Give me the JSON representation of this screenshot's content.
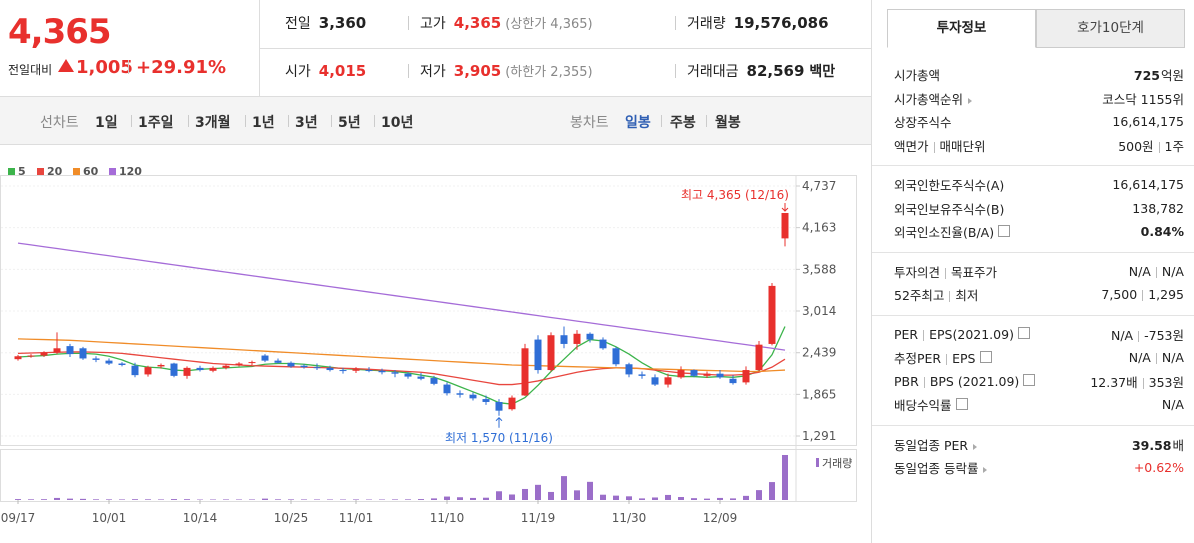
{
  "quote": {
    "price": "4,365",
    "change_label": "전일대비",
    "change": "1,005",
    "change_pct": "+29.91%",
    "color": "#e8302d"
  },
  "summary": [
    [
      {
        "label": "전일",
        "value": "3,360"
      },
      {
        "label": "고가",
        "value": "4,365",
        "note": "(상한가 4,365)",
        "color": "#e8302d"
      },
      {
        "label": "거래량",
        "value": "19,576,086"
      }
    ],
    [
      {
        "label": "시가",
        "value": "4,015",
        "color": "#e8302d"
      },
      {
        "label": "저가",
        "value": "3,905",
        "note": "(하한가 2,355)",
        "color": "#e8302d"
      },
      {
        "label": "거래대금",
        "value": "82,569",
        "unit": "백만"
      }
    ]
  ],
  "line_chart_tabs": {
    "label": "선차트",
    "options": [
      "1일",
      "1주일",
      "3개월",
      "1년",
      "3년",
      "5년",
      "10년"
    ]
  },
  "candle_tabs": {
    "label": "봉차트",
    "options": [
      "일봉",
      "주봉",
      "월봉"
    ],
    "selected": 0
  },
  "chart": {
    "type": "candlestick",
    "grid": true,
    "up_color": "#e8302d",
    "down_color": "#2f6ed6",
    "categories": [
      "09/17",
      null,
      null,
      null,
      null,
      null,
      null,
      "10/01",
      null,
      null,
      null,
      null,
      null,
      null,
      "10/14",
      null,
      null,
      null,
      null,
      null,
      null,
      "10/25",
      null,
      null,
      null,
      null,
      "11/01",
      null,
      null,
      null,
      null,
      null,
      null,
      "11/10",
      null,
      null,
      null,
      null,
      null,
      null,
      "11/19",
      null,
      null,
      null,
      null,
      null,
      null,
      "11/30",
      null,
      null,
      null,
      null,
      null,
      null,
      "12/09",
      null,
      null,
      null,
      null,
      null
    ],
    "candles": {
      "open": [
        2350,
        2390,
        2400,
        2440,
        2530,
        2500,
        2360,
        2330,
        2290,
        2260,
        2140,
        2250,
        2290,
        2120,
        2230,
        2190,
        2230,
        2270,
        2300,
        2400,
        2330,
        2300,
        2260,
        2240,
        2230,
        2200,
        2190,
        2200,
        2190,
        2170,
        2150,
        2110,
        2090,
        2000,
        1880,
        1860,
        1800,
        1760,
        1660,
        1850,
        2620,
        2200,
        2680,
        2560,
        2700,
        2620,
        2500,
        2280,
        2140,
        2100,
        2000,
        2100,
        2200,
        2120,
        2150,
        2080,
        2030,
        2200,
        2560,
        4015
      ],
      "high": [
        2410,
        2420,
        2460,
        2720,
        2560,
        2520,
        2390,
        2360,
        2310,
        2300,
        2260,
        2290,
        2300,
        2250,
        2260,
        2250,
        2280,
        2310,
        2330,
        2420,
        2360,
        2320,
        2280,
        2290,
        2260,
        2230,
        2240,
        2240,
        2220,
        2200,
        2170,
        2160,
        2120,
        2030,
        1920,
        1890,
        1850,
        1800,
        1850,
        2560,
        2680,
        2720,
        2800,
        2750,
        2720,
        2650,
        2520,
        2300,
        2180,
        2140,
        2150,
        2250,
        2210,
        2180,
        2200,
        2130,
        2250,
        2600,
        3400,
        4365
      ],
      "low": [
        2330,
        2370,
        2380,
        2420,
        2380,
        2340,
        2310,
        2270,
        2250,
        2100,
        2110,
        2220,
        2100,
        2080,
        2180,
        2170,
        2210,
        2250,
        2270,
        2310,
        2290,
        2230,
        2220,
        2200,
        2180,
        2150,
        2160,
        2170,
        2140,
        2100,
        2080,
        2060,
        1990,
        1850,
        1820,
        1780,
        1720,
        1570,
        1640,
        1840,
        2150,
        2180,
        2500,
        2480,
        2580,
        2480,
        2250,
        2100,
        2080,
        1980,
        1960,
        2080,
        2100,
        2090,
        2080,
        2000,
        2000,
        2180,
        2540,
        3905
      ],
      "close": [
        2390,
        2400,
        2440,
        2500,
        2420,
        2360,
        2340,
        2290,
        2270,
        2130,
        2240,
        2270,
        2120,
        2230,
        2200,
        2230,
        2260,
        2290,
        2310,
        2330,
        2300,
        2250,
        2240,
        2230,
        2200,
        2190,
        2210,
        2190,
        2170,
        2150,
        2110,
        2080,
        2010,
        1880,
        1860,
        1810,
        1760,
        1640,
        1820,
        2500,
        2200,
        2680,
        2560,
        2700,
        2620,
        2500,
        2280,
        2140,
        2120,
        2000,
        2100,
        2200,
        2120,
        2150,
        2100,
        2020,
        2200,
        2550,
        3360,
        4365
      ]
    },
    "series": [
      {
        "name": "5",
        "color": "#3cb44b",
        "values": [
          2380,
          2390,
          2400,
          2420,
          2430,
          2430,
          2420,
          2390,
          2340,
          2270,
          2240,
          2230,
          2200,
          2190,
          2210,
          2220,
          2230,
          2240,
          2250,
          2280,
          2290,
          2290,
          2280,
          2260,
          2240,
          2220,
          2210,
          2200,
          2190,
          2180,
          2160,
          2130,
          2100,
          2040,
          1970,
          1900,
          1830,
          1750,
          1730,
          1820,
          1990,
          2180,
          2350,
          2520,
          2620,
          2600,
          2520,
          2420,
          2300,
          2200,
          2130,
          2110,
          2110,
          2100,
          2110,
          2100,
          2120,
          2190,
          2410,
          2800
        ]
      },
      {
        "name": "20",
        "color": "#e8463e",
        "values": [
          2430,
          2435,
          2440,
          2445,
          2450,
          2450,
          2445,
          2440,
          2430,
          2410,
          2390,
          2370,
          2350,
          2330,
          2310,
          2290,
          2280,
          2270,
          2260,
          2255,
          2250,
          2245,
          2240,
          2235,
          2230,
          2225,
          2220,
          2210,
          2200,
          2190,
          2180,
          2170,
          2150,
          2120,
          2090,
          2060,
          2030,
          2000,
          2000,
          2020,
          2050,
          2090,
          2130,
          2170,
          2200,
          2220,
          2230,
          2230,
          2220,
          2200,
          2180,
          2160,
          2150,
          2140,
          2130,
          2130,
          2140,
          2170,
          2240,
          2350
        ]
      },
      {
        "name": "60",
        "color": "#f08c28",
        "values": [
          2630,
          2625,
          2620,
          2615,
          2610,
          2600,
          2590,
          2580,
          2570,
          2560,
          2550,
          2540,
          2530,
          2520,
          2510,
          2500,
          2490,
          2480,
          2470,
          2460,
          2450,
          2440,
          2430,
          2420,
          2410,
          2400,
          2390,
          2380,
          2370,
          2360,
          2350,
          2340,
          2330,
          2320,
          2310,
          2300,
          2290,
          2280,
          2270,
          2265,
          2260,
          2255,
          2250,
          2245,
          2240,
          2235,
          2230,
          2225,
          2220,
          2215,
          2210,
          2205,
          2200,
          2195,
          2190,
          2185,
          2180,
          2180,
          2190,
          2200
        ]
      },
      {
        "name": "120",
        "color": "#a56cd8",
        "values": [
          3950,
          3925,
          3900,
          3875,
          3850,
          3825,
          3800,
          3775,
          3750,
          3725,
          3700,
          3675,
          3650,
          3625,
          3600,
          3575,
          3550,
          3525,
          3500,
          3475,
          3450,
          3425,
          3400,
          3375,
          3350,
          3325,
          3300,
          3275,
          3250,
          3225,
          3200,
          3175,
          3150,
          3125,
          3100,
          3075,
          3050,
          3025,
          3000,
          2975,
          2950,
          2925,
          2900,
          2875,
          2850,
          2825,
          2800,
          2775,
          2750,
          2725,
          2700,
          2675,
          2650,
          2625,
          2600,
          2575,
          2550,
          2525,
          2500,
          2475
        ]
      }
    ],
    "ylim": [
      1291,
      4737
    ],
    "yticks": [
      {
        "value": 1291,
        "label": "1,291"
      },
      {
        "value": 1865,
        "label": "1,865"
      },
      {
        "value": 2439,
        "label": "2,439"
      },
      {
        "value": 3014,
        "label": "3,014"
      },
      {
        "value": 3588,
        "label": "3,588"
      },
      {
        "value": 4163,
        "label": "4,163"
      },
      {
        "value": 4737,
        "label": "4,737"
      }
    ],
    "high_label": "최고 4,365 (12/16)",
    "low_label": "최저 1,570 (11/16)",
    "volume": {
      "name": "거래량",
      "color": "#9b6ec9",
      "values": [
        400000,
        300000,
        350000,
        900000,
        600000,
        500000,
        300000,
        280000,
        250000,
        350000,
        300000,
        250000,
        400000,
        350000,
        200000,
        220000,
        250000,
        230000,
        240000,
        600000,
        300000,
        280000,
        250000,
        240000,
        230000,
        220000,
        250000,
        210000,
        220000,
        260000,
        280000,
        400000,
        700000,
        1500000,
        1200000,
        900000,
        1000000,
        3800000,
        2400000,
        4800000,
        6600000,
        3500000,
        10400000,
        4200000,
        7900000,
        2300000,
        1900000,
        1600000,
        700000,
        1100000,
        2200000,
        1300000,
        800000,
        600000,
        900000,
        700000,
        1800000,
        4300000,
        7800000,
        19576086
      ]
    }
  },
  "info": {
    "tabs": [
      "투자정보",
      "호가10단계"
    ],
    "active_tab": 0,
    "groups": [
      [
        {
          "label": [
            "시가총액"
          ],
          "value": [
            "725"
          ],
          "unit": "억원",
          "bold": true
        },
        {
          "label": [
            "시가총액순위"
          ],
          "link": true,
          "value": [
            "코스닥 1155위"
          ]
        },
        {
          "label": [
            "상장주식수"
          ],
          "value": [
            "16,614,175"
          ]
        },
        {
          "label": [
            "액면가",
            "매매단위"
          ],
          "value": [
            "500원",
            "1주"
          ]
        }
      ],
      [
        {
          "label": [
            "외국인한도주식수(A)"
          ],
          "value": [
            "16,614,175"
          ]
        },
        {
          "label": [
            "외국인보유주식수(B)"
          ],
          "value": [
            "138,782"
          ]
        },
        {
          "label": [
            "외국인소진율(B/A)"
          ],
          "help": true,
          "value": [
            "0.84%"
          ],
          "bold": true
        }
      ],
      [
        {
          "label": [
            "투자의견",
            "목표주가"
          ],
          "value": [
            "N/A",
            "N/A"
          ]
        },
        {
          "label": [
            "52주최고",
            "최저"
          ],
          "value": [
            "7,500",
            "1,295"
          ]
        }
      ],
      [
        {
          "label": [
            "PER",
            "EPS(2021.09)"
          ],
          "help": true,
          "value": [
            "N/A",
            "-753원"
          ]
        },
        {
          "label": [
            "추정PER",
            "EPS"
          ],
          "help": true,
          "value": [
            "N/A",
            "N/A"
          ]
        },
        {
          "label": [
            "PBR",
            "BPS (2021.09)"
          ],
          "help": true,
          "value": [
            "12.37배",
            "353원"
          ]
        },
        {
          "label": [
            "배당수익률"
          ],
          "help": true,
          "value": [
            "N/A"
          ]
        }
      ],
      [
        {
          "label": [
            "동일업종 PER"
          ],
          "link": true,
          "value": [
            "39.58"
          ],
          "unit": "배",
          "bold": true
        },
        {
          "label": [
            "동일업종 등락률"
          ],
          "link": true,
          "value": [
            "+0.62%"
          ],
          "color": "#e8302d"
        }
      ]
    ]
  }
}
